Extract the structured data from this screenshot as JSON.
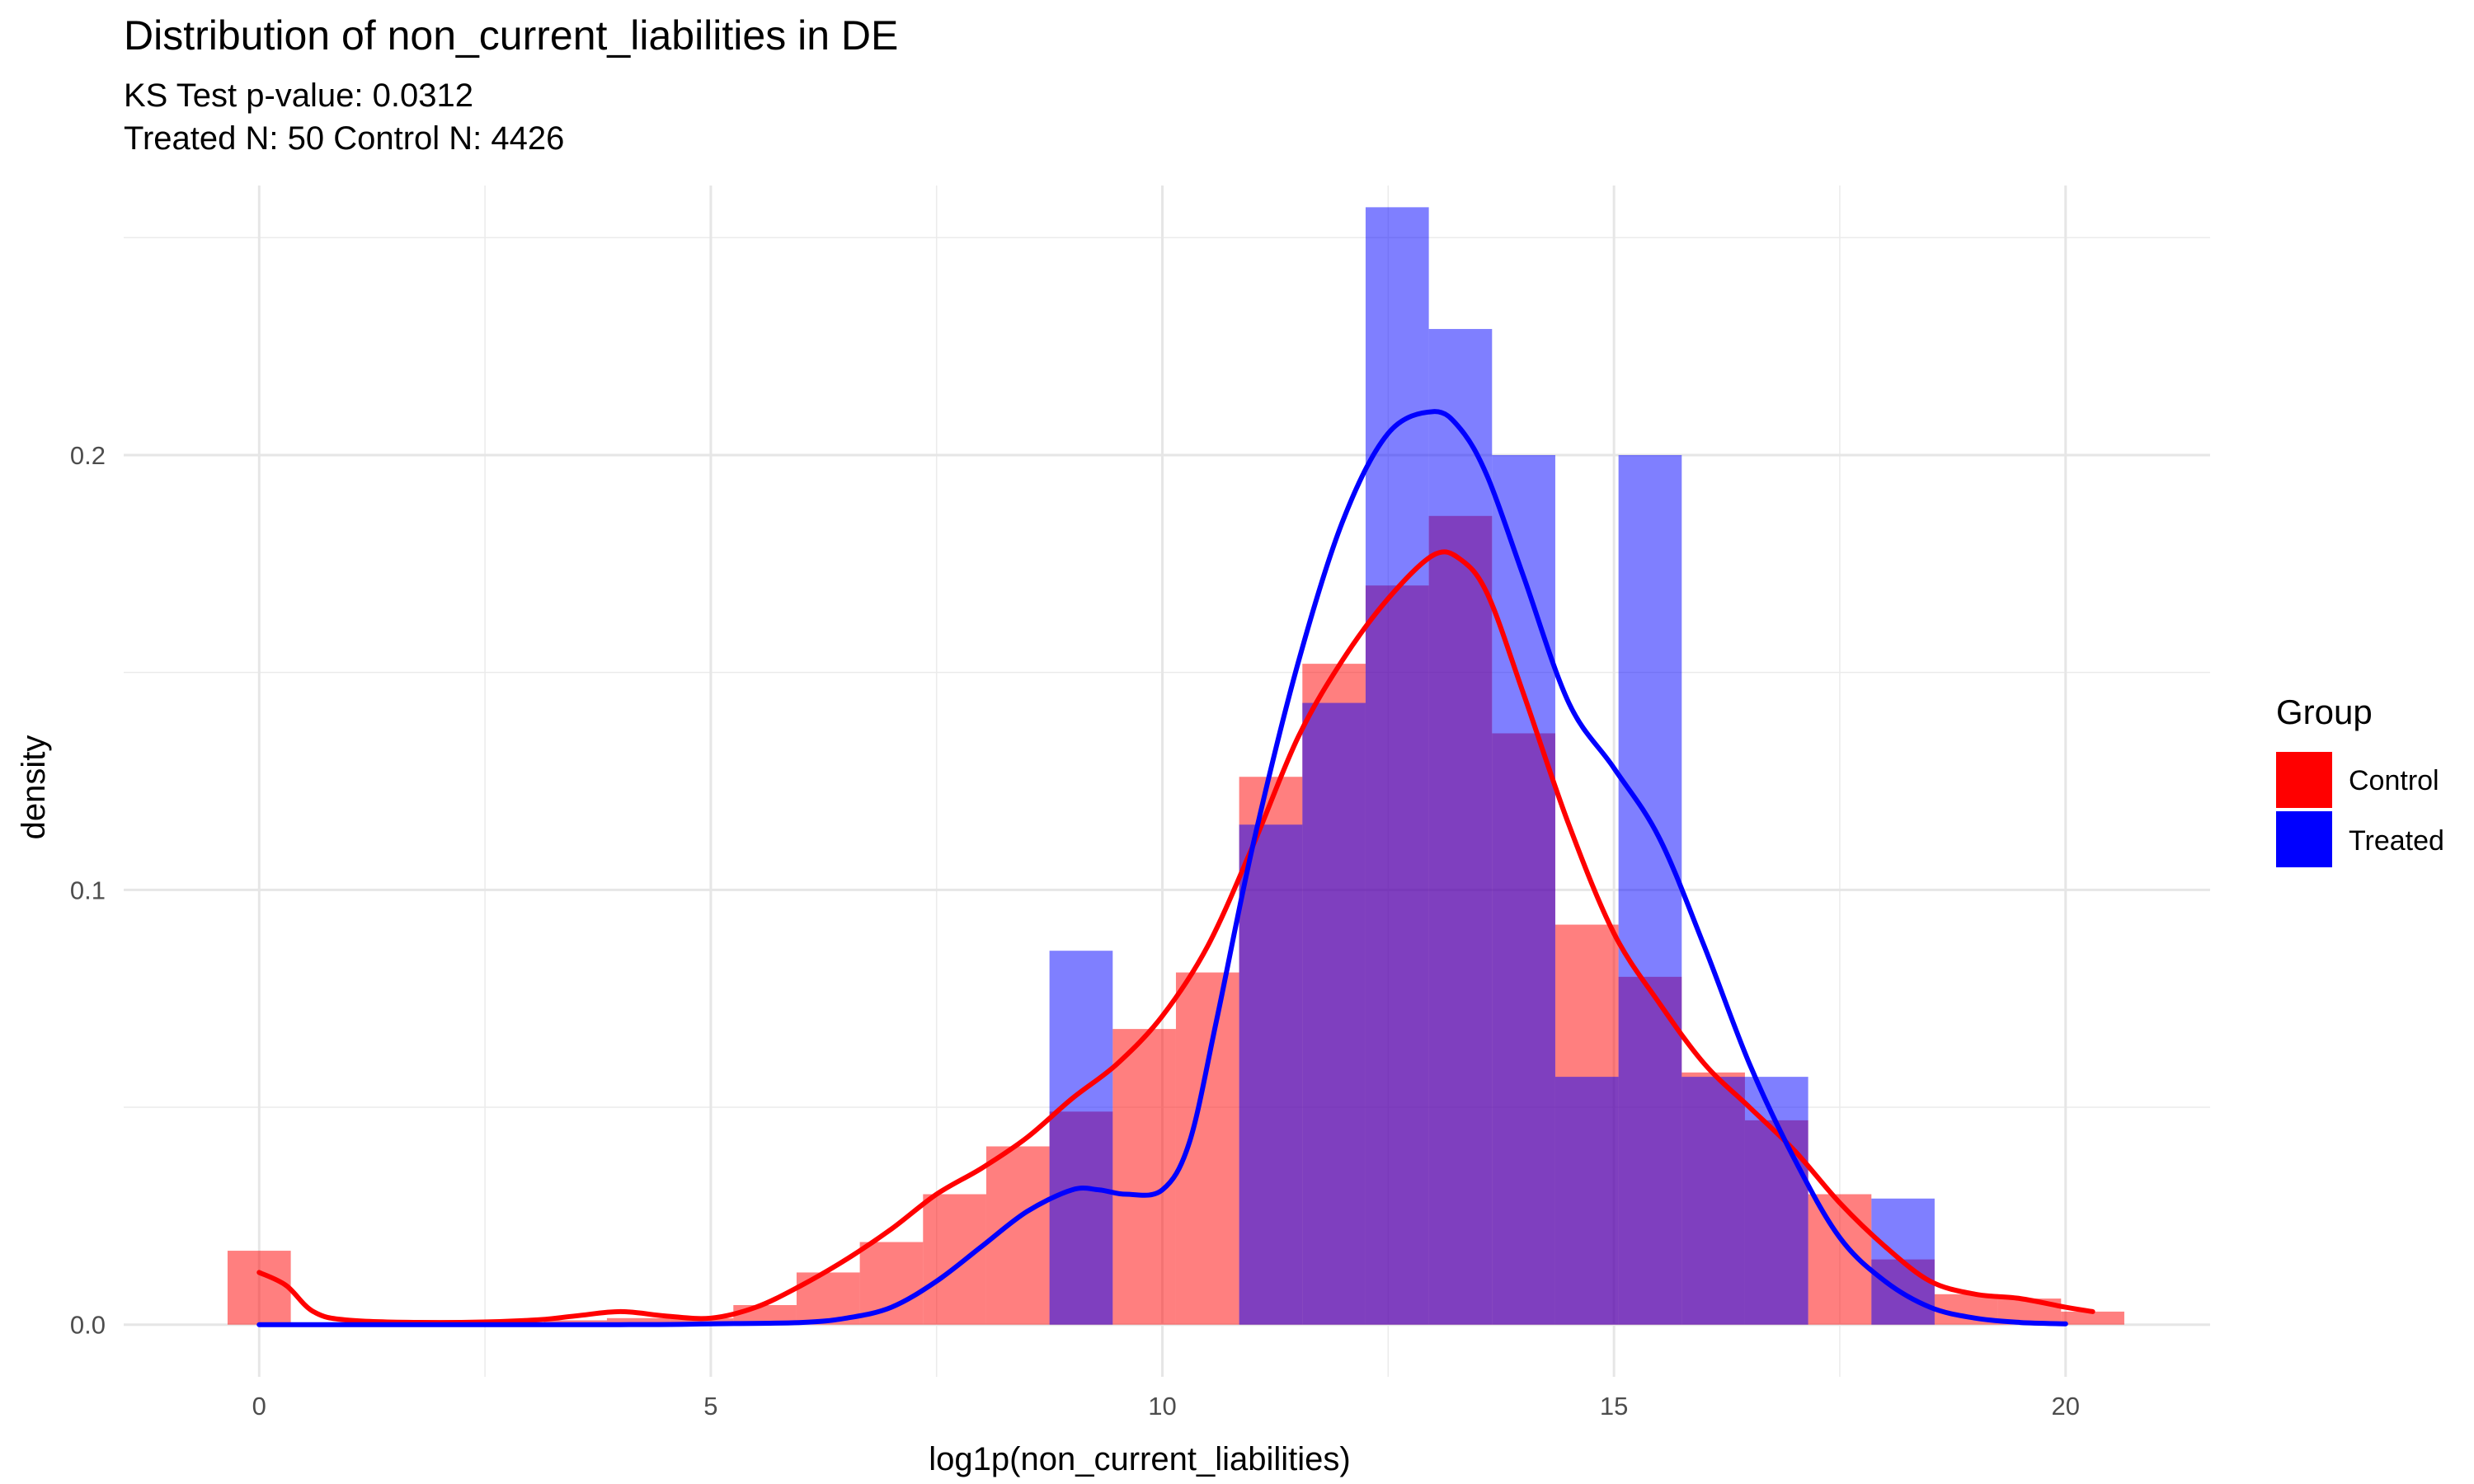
{
  "chart_data": {
    "type": "histogram",
    "title": "Distribution of non_current_liabilities in DE",
    "subtitle_lines": [
      "KS Test p-value: 0.0312",
      "Treated N: 50 Control N: 4426"
    ],
    "xlabel": "log1p(non_current_liabilities)",
    "ylabel": "density",
    "xlim": [
      -1.5,
      21.6
    ],
    "ylim": [
      -0.012,
      0.262
    ],
    "x_ticks": [
      0,
      5,
      10,
      15,
      20
    ],
    "x_tick_labels": [
      "0",
      "5",
      "10",
      "15",
      "20"
    ],
    "y_ticks": [
      0.0,
      0.1,
      0.2
    ],
    "y_tick_labels": [
      "0.0",
      "0.1",
      "0.2"
    ],
    "grid": true,
    "legend": {
      "title": "Group",
      "position": "right",
      "entries": [
        {
          "label": "Control",
          "color": "#ff0000"
        },
        {
          "label": "Treated",
          "color": "#0000ff"
        }
      ]
    },
    "bin_width": 0.7,
    "series": [
      {
        "name": "Control",
        "color": "#ff0000",
        "bar_opacity": 0.5,
        "bars": [
          {
            "x0": -0.35,
            "x1": 0.35,
            "density": 0.017
          },
          {
            "x0": 0.35,
            "x1": 1.05,
            "density": 0.0005
          },
          {
            "x0": 1.05,
            "x1": 1.75,
            "density": 0.0003
          },
          {
            "x0": 1.75,
            "x1": 2.45,
            "density": 0.0002
          },
          {
            "x0": 2.45,
            "x1": 3.15,
            "density": 0.0004
          },
          {
            "x0": 3.15,
            "x1": 3.85,
            "density": 0.001
          },
          {
            "x0": 3.85,
            "x1": 4.55,
            "density": 0.0015
          },
          {
            "x0": 4.55,
            "x1": 5.25,
            "density": 0.0015
          },
          {
            "x0": 5.25,
            "x1": 5.95,
            "density": 0.0045
          },
          {
            "x0": 5.95,
            "x1": 6.65,
            "density": 0.012
          },
          {
            "x0": 6.65,
            "x1": 7.35,
            "density": 0.019
          },
          {
            "x0": 7.35,
            "x1": 8.05,
            "density": 0.03
          },
          {
            "x0": 8.05,
            "x1": 8.75,
            "density": 0.041
          },
          {
            "x0": 8.75,
            "x1": 9.45,
            "density": 0.049
          },
          {
            "x0": 9.45,
            "x1": 10.15,
            "density": 0.068
          },
          {
            "x0": 10.15,
            "x1": 10.85,
            "density": 0.081
          },
          {
            "x0": 10.85,
            "x1": 11.55,
            "density": 0.126
          },
          {
            "x0": 11.55,
            "x1": 12.25,
            "density": 0.152
          },
          {
            "x0": 12.25,
            "x1": 12.95,
            "density": 0.17
          },
          {
            "x0": 12.95,
            "x1": 13.65,
            "density": 0.186
          },
          {
            "x0": 13.65,
            "x1": 14.35,
            "density": 0.136
          },
          {
            "x0": 14.35,
            "x1": 15.05,
            "density": 0.092
          },
          {
            "x0": 15.05,
            "x1": 15.75,
            "density": 0.08
          },
          {
            "x0": 15.75,
            "x1": 16.45,
            "density": 0.058
          },
          {
            "x0": 16.45,
            "x1": 17.15,
            "density": 0.047
          },
          {
            "x0": 17.15,
            "x1": 17.85,
            "density": 0.03
          },
          {
            "x0": 17.85,
            "x1": 18.55,
            "density": 0.015
          },
          {
            "x0": 18.55,
            "x1": 19.25,
            "density": 0.007
          },
          {
            "x0": 19.25,
            "x1": 19.95,
            "density": 0.006
          },
          {
            "x0": 19.95,
            "x1": 20.65,
            "density": 0.003
          }
        ],
        "density_curve": {
          "x": [
            0,
            0.3,
            0.6,
            1.0,
            2.0,
            3.0,
            3.5,
            4.0,
            4.5,
            5.0,
            5.5,
            6.0,
            6.5,
            7.0,
            7.5,
            8.0,
            8.5,
            9.0,
            9.5,
            10.0,
            10.5,
            11.0,
            11.5,
            12.0,
            12.5,
            13.0,
            13.3,
            13.6,
            14.0,
            14.5,
            15.0,
            15.5,
            16.0,
            16.5,
            17.0,
            17.5,
            18.0,
            18.5,
            19.0,
            19.5,
            20.0,
            20.3
          ],
          "y": [
            0.012,
            0.009,
            0.003,
            0.001,
            0.0005,
            0.001,
            0.002,
            0.003,
            0.002,
            0.0015,
            0.004,
            0.009,
            0.015,
            0.022,
            0.03,
            0.036,
            0.043,
            0.052,
            0.06,
            0.071,
            0.087,
            0.11,
            0.135,
            0.153,
            0.167,
            0.177,
            0.176,
            0.168,
            0.145,
            0.115,
            0.09,
            0.074,
            0.06,
            0.05,
            0.04,
            0.028,
            0.018,
            0.01,
            0.007,
            0.006,
            0.004,
            0.003
          ]
        }
      },
      {
        "name": "Treated",
        "color": "#0000ff",
        "bar_opacity": 0.5,
        "bars": [
          {
            "x0": 8.75,
            "x1": 9.45,
            "density": 0.086
          },
          {
            "x0": 10.85,
            "x1": 11.55,
            "density": 0.115
          },
          {
            "x0": 11.55,
            "x1": 12.25,
            "density": 0.143
          },
          {
            "x0": 12.25,
            "x1": 12.95,
            "density": 0.257
          },
          {
            "x0": 12.95,
            "x1": 13.65,
            "density": 0.229
          },
          {
            "x0": 13.65,
            "x1": 14.35,
            "density": 0.2
          },
          {
            "x0": 14.35,
            "x1": 15.05,
            "density": 0.057
          },
          {
            "x0": 15.05,
            "x1": 15.75,
            "density": 0.2
          },
          {
            "x0": 15.75,
            "x1": 16.45,
            "density": 0.057
          },
          {
            "x0": 16.45,
            "x1": 17.15,
            "density": 0.057
          },
          {
            "x0": 17.85,
            "x1": 18.55,
            "density": 0.029
          }
        ],
        "density_curve": {
          "x": [
            0,
            4.0,
            5.0,
            6.0,
            6.5,
            7.0,
            7.5,
            8.0,
            8.5,
            9.0,
            9.3,
            9.6,
            10.0,
            10.3,
            10.6,
            11.0,
            11.5,
            12.0,
            12.5,
            13.0,
            13.3,
            13.6,
            14.0,
            14.5,
            15.0,
            15.5,
            16.0,
            16.5,
            17.0,
            17.5,
            18.0,
            18.5,
            19.0,
            19.5,
            20.0
          ],
          "y": [
            0,
            0,
            0.0002,
            0.0005,
            0.0015,
            0.004,
            0.01,
            0.018,
            0.026,
            0.031,
            0.031,
            0.03,
            0.031,
            0.042,
            0.07,
            0.11,
            0.152,
            0.185,
            0.205,
            0.21,
            0.206,
            0.195,
            0.172,
            0.143,
            0.128,
            0.112,
            0.087,
            0.06,
            0.038,
            0.02,
            0.01,
            0.004,
            0.0015,
            0.0005,
            0.0002
          ]
        }
      }
    ]
  }
}
